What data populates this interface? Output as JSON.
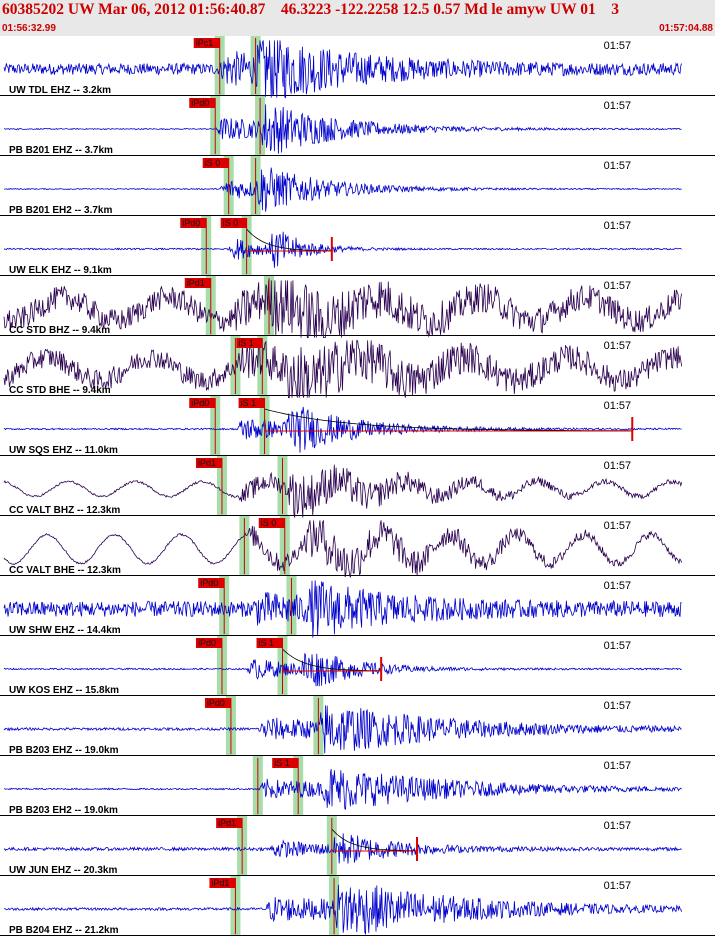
{
  "header": {
    "title": "60385202 UW Mar 06, 2012 01:56:40.87    46.3223 -122.2258 12.5 0.57 Md le amyw UW 01    3",
    "start_time": "01:56:32.99",
    "end_time": "01:57:04.88"
  },
  "colors": {
    "header_text": "#cc0000",
    "trace_blue": "#0000cc",
    "trace_dark": "#2a0050",
    "pick_fill": "#dd0000",
    "pick_band": "#a8dca8",
    "separator": "#000000"
  },
  "chart_data": {
    "type": "line",
    "x_range_seconds_from_start": [
      0,
      31.89
    ],
    "time_tick_label": "01:57",
    "time_tick_seconds_from_start": 27.01,
    "panels": [
      {
        "station": "UW TDL EHZ -- 3.2km",
        "color": "blue",
        "picks": [
          {
            "label": "iPc1",
            "t": 9.8
          },
          {
            "label": "",
            "t": 11.4
          }
        ],
        "envelope": {
          "p": 9.8,
          "s": 11.4,
          "noise": 0.22,
          "amp": 1.0,
          "decay": 3.5,
          "wave": "noise"
        },
        "coda": null
      },
      {
        "station": "PB B201 EHZ -- 3.7km",
        "color": "blue",
        "picks": [
          {
            "label": "iPd0",
            "t": 9.6
          },
          {
            "label": "",
            "t": 11.6
          }
        ],
        "envelope": {
          "p": 9.6,
          "s": 11.6,
          "noise": 0.02,
          "amp": 0.9,
          "decay": 3.0,
          "wave": "noise"
        },
        "coda": null
      },
      {
        "station": "PB B201 EH2 -- 3.7km",
        "color": "blue",
        "picks": [
          {
            "label": "iS 0",
            "t": 10.2
          },
          {
            "label": "",
            "t": 11.4
          }
        ],
        "envelope": {
          "p": 9.8,
          "s": 11.4,
          "noise": 0.02,
          "amp": 0.8,
          "decay": 2.5,
          "wave": "noise"
        },
        "coda": null
      },
      {
        "station": "UW ELK EHZ -- 9.1km",
        "color": "blue",
        "picks": [
          {
            "label": "iPd0",
            "t": 9.2
          },
          {
            "label": "iS 0",
            "t": 11.0
          }
        ],
        "envelope": {
          "p": 10.2,
          "s": 12.0,
          "noise": 0.03,
          "amp": 0.9,
          "decay": 1.2,
          "wave": "noise"
        },
        "coda": {
          "end": 14.8
        }
      },
      {
        "station": "CC STD BHZ -- 9.4km",
        "color": "dark",
        "picks": [
          {
            "label": "iPd1",
            "t": 9.4
          },
          {
            "label": "",
            "t": 12.0
          }
        ],
        "envelope": {
          "p": 10.4,
          "s": 12.0,
          "noise": 0.45,
          "amp": 0.8,
          "decay": 4.0,
          "wave": "swell"
        },
        "coda": null
      },
      {
        "station": "CC STD BHE -- 9.4km",
        "color": "dark",
        "picks": [
          {
            "label": "iS 1",
            "t": 11.7
          },
          {
            "label": "",
            "t": 10.5
          }
        ],
        "envelope": {
          "p": 10.5,
          "s": 12.7,
          "noise": 0.4,
          "amp": 0.8,
          "decay": 4.5,
          "wave": "swell"
        },
        "coda": null
      },
      {
        "station": "UW SQS EHZ -- 11.0km",
        "color": "blue",
        "picks": [
          {
            "label": "iPd0",
            "t": 9.6
          },
          {
            "label": "iS 1",
            "t": 11.8
          }
        ],
        "envelope": {
          "p": 10.5,
          "s": 12.7,
          "noise": 0.03,
          "amp": 0.9,
          "decay": 2.5,
          "wave": "noise"
        },
        "coda": {
          "end": 28.2
        }
      },
      {
        "station": "CC VALT BHZ -- 12.3km",
        "color": "dark",
        "picks": [
          {
            "label": "iPd1",
            "t": 9.9
          },
          {
            "label": "",
            "t": 12.6
          }
        ],
        "envelope": {
          "p": 10.6,
          "s": 12.8,
          "noise": 0.18,
          "amp": 0.7,
          "decay": 5.0,
          "wave": "slow"
        },
        "coda": null
      },
      {
        "station": "CC VALT BHE -- 12.3km",
        "color": "dark",
        "picks": [
          {
            "label": "iS 0",
            "t": 12.7
          },
          {
            "label": "",
            "t": 10.9
          }
        ],
        "envelope": {
          "p": 10.9,
          "s": 13.6,
          "noise": 0.35,
          "amp": 0.7,
          "decay": 6.0,
          "wave": "slow"
        },
        "coda": null
      },
      {
        "station": "UW SHW EHZ -- 14.4km",
        "color": "blue",
        "picks": [
          {
            "label": "iPd0",
            "t": 10.0
          },
          {
            "label": "",
            "t": 13.0
          }
        ],
        "envelope": {
          "p": 11.2,
          "s": 13.7,
          "noise": 0.3,
          "amp": 0.8,
          "decay": 3.0,
          "wave": "noise"
        },
        "coda": null
      },
      {
        "station": "UW KOS EHZ -- 15.8km",
        "color": "blue",
        "picks": [
          {
            "label": "iPd0",
            "t": 9.9
          },
          {
            "label": "iS 1",
            "t": 12.6
          }
        ],
        "envelope": {
          "p": 11.0,
          "s": 13.4,
          "noise": 0.03,
          "amp": 0.8,
          "decay": 2.0,
          "wave": "noise"
        },
        "coda": {
          "end": 17.0
        }
      },
      {
        "station": "PB B203 EHZ -- 19.0km",
        "color": "blue",
        "picks": [
          {
            "label": "iPd0",
            "t": 10.3
          },
          {
            "label": "",
            "t": 14.2
          }
        ],
        "envelope": {
          "p": 11.5,
          "s": 14.2,
          "noise": 0.05,
          "amp": 0.8,
          "decay": 5.0,
          "wave": "noise"
        },
        "coda": null
      },
      {
        "station": "PB B203 EH2 -- 19.0km",
        "color": "blue",
        "picks": [
          {
            "label": "iS 1",
            "t": 13.3
          },
          {
            "label": "",
            "t": 11.5
          }
        ],
        "envelope": {
          "p": 11.5,
          "s": 14.4,
          "noise": 0.03,
          "amp": 0.7,
          "decay": 5.0,
          "wave": "noise"
        },
        "coda": null
      },
      {
        "station": "UW JUN EHZ -- 20.3km",
        "color": "blue",
        "picks": [
          {
            "label": "iPd1",
            "t": 10.8
          },
          {
            "label": "",
            "t": 14.8
          }
        ],
        "envelope": {
          "p": 12.0,
          "s": 14.8,
          "noise": 0.06,
          "amp": 0.6,
          "decay": 2.5,
          "wave": "noise"
        },
        "coda": {
          "end": 18.6
        }
      },
      {
        "station": "PB B204 EHZ -- 21.2km",
        "color": "blue",
        "picks": [
          {
            "label": "iPd1",
            "t": 10.5
          },
          {
            "label": "",
            "t": 14.9
          }
        ],
        "envelope": {
          "p": 11.8,
          "s": 14.9,
          "noise": 0.05,
          "amp": 0.9,
          "decay": 5.0,
          "wave": "noise"
        },
        "coda": null
      }
    ]
  }
}
